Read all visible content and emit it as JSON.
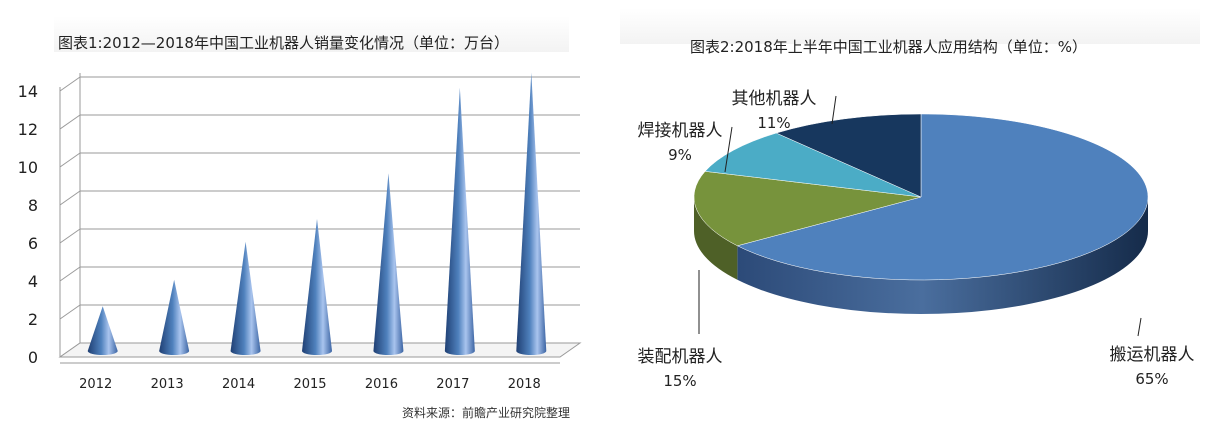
{
  "chart_data": [
    {
      "type": "bar",
      "title": "图表1:2012—2018年中国工业机器人销量变化情况（单位：万台）",
      "categories": [
        "2012",
        "2013",
        "2014",
        "2015",
        "2016",
        "2017",
        "2018"
      ],
      "values": [
        2.3,
        3.7,
        5.7,
        6.9,
        9.3,
        13.8,
        14.6
      ],
      "ylim": [
        0,
        14
      ],
      "yticks": [
        "0",
        "2",
        "4",
        "6",
        "8",
        "10",
        "12",
        "14"
      ],
      "grid": true,
      "mark_shape": "cone",
      "color": "#4f81bd"
    },
    {
      "type": "pie",
      "title": "图表2:2018年上半年中国工业机器人应用结构（单位：%）",
      "labels": [
        "搬运机器人",
        "装配机器人",
        "焊接机器人",
        "其他机器人"
      ],
      "values": [
        65,
        15,
        9,
        11
      ],
      "value_labels": [
        "65%",
        "15%",
        "9%",
        "11%"
      ],
      "colors": [
        "#4f81bd",
        "#77933c",
        "#4bacc6",
        "#17375e"
      ],
      "style": "3d"
    }
  ],
  "source_note": "资料来源：前瞻产业研究院整理"
}
